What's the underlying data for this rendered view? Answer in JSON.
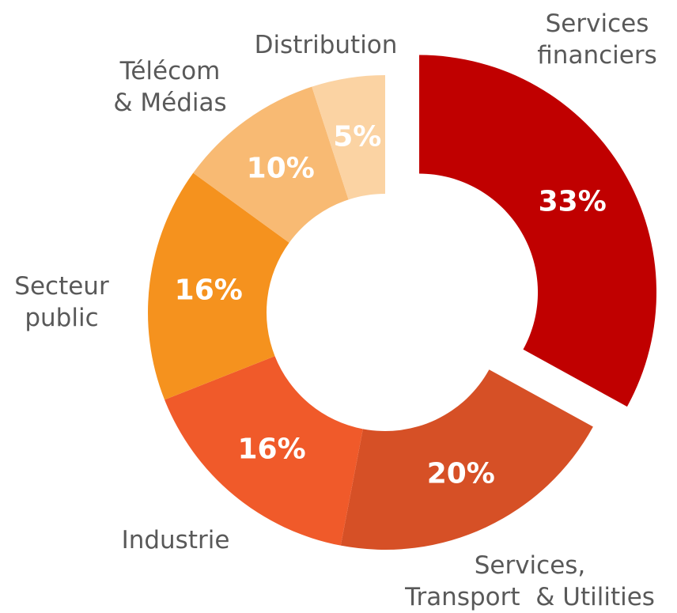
{
  "chart_data": {
    "type": "donut",
    "categories": [
      "Services\nfinanciers",
      "Services,\nTransport  & Utilities",
      "Industrie",
      "Secteur\npublic",
      "Télécom\n& Médias",
      "Distribution"
    ],
    "values": [
      33,
      20,
      16,
      16,
      10,
      5
    ],
    "value_labels": [
      "33%",
      "20%",
      "16%",
      "16%",
      "10%",
      "5%"
    ],
    "colors": [
      "#C00000",
      "#D65026",
      "#F05A2A",
      "#F5921E",
      "#F8BA73",
      "#FBD3A3"
    ]
  }
}
